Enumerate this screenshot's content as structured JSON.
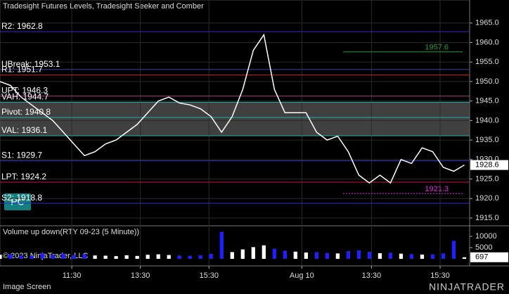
{
  "header": {
    "title": "Tradesight Futures Levels, Tradesight Seeker and Comber",
    "button": "PC",
    "footer": "Image Screen",
    "logo": "NINJATRADER"
  },
  "chart_data": [
    {
      "type": "line",
      "color": "#ffffff",
      "values": [
        1950,
        1949,
        1946,
        1944,
        1942,
        1940,
        1937,
        1934,
        1931,
        1932,
        1934,
        1935,
        1937,
        1939,
        1942,
        1945,
        1946,
        1944.5,
        1944,
        1943,
        1941,
        1937,
        1941,
        1948,
        1958,
        1962,
        1948,
        1942,
        1942,
        1942,
        1937,
        1935,
        1936,
        1932,
        1926,
        1924,
        1926,
        1924,
        1930,
        1929,
        1933,
        1932,
        1928,
        1927,
        1928.6
      ],
      "xlim": [
        0,
        44.5
      ],
      "xticks": [
        {
          "value": 6.8,
          "label": "11:30"
        },
        {
          "value": 13.3,
          "label": "13:30"
        },
        {
          "value": 19.8,
          "label": "15:30"
        },
        {
          "value": 28.6,
          "label": "Aug 10"
        },
        {
          "value": 35.2,
          "label": "13:30"
        },
        {
          "value": 41.7,
          "label": "15:30"
        }
      ],
      "ylim": [
        1913.2,
        1968.2
      ],
      "yticks": [
        {
          "value": 1965,
          "label": "1965.0"
        },
        {
          "value": 1960,
          "label": "1960.0"
        },
        {
          "value": 1955,
          "label": "1955.0"
        },
        {
          "value": 1950,
          "label": "1950.0"
        },
        {
          "value": 1945,
          "label": "1945.0"
        },
        {
          "value": 1940,
          "label": "1940.0"
        },
        {
          "value": 1935,
          "label": "1935.0"
        },
        {
          "value": 1930,
          "label": "1930.0"
        },
        {
          "value": 1925,
          "label": "1925.0"
        },
        {
          "value": 1920,
          "label": "1920.0"
        },
        {
          "value": 1915,
          "label": "1915.0"
        }
      ],
      "grid": true,
      "band": {
        "from": 1944.7,
        "to": 1936.1,
        "color": "#505050"
      },
      "levels": [
        {
          "label": "R2: 1962.8",
          "value": 1962.8,
          "color": "#2b2bd0"
        },
        {
          "label": "UBreak: 1953.1",
          "value": 1953.1,
          "color": "#4040a0"
        },
        {
          "label": "R1: 1951.7",
          "value": 1951.7,
          "color": "#d01010"
        },
        {
          "label": "UPT: 1946.3",
          "value": 1946.3,
          "color": "#a03080"
        },
        {
          "label": "VAH: 1944.7",
          "value": 1944.7,
          "color": "#20b0b0"
        },
        {
          "label": "Pivot: 1940.8",
          "value": 1940.8,
          "color": "#20b0b0"
        },
        {
          "label": "VAL: 1936.1",
          "value": 1936.1,
          "color": "#20b0b0"
        },
        {
          "label": "S1: 1929.7",
          "value": 1929.7,
          "color": "#2b2bd0"
        },
        {
          "label": "LPT: 1924.2",
          "value": 1924.2,
          "color": "#d01050"
        },
        {
          "label": "S2: 1918.8",
          "value": 1918.8,
          "color": "#2b2bd0"
        }
      ],
      "marks": [
        {
          "label": "1957.6",
          "value": 1957.6,
          "color": "#20a020"
        },
        {
          "label": "1921.3",
          "value": 1921.3,
          "color": "#e020e0"
        }
      ]
    },
    {
      "type": "bar",
      "title": "Volume up down(RTY 09-23 (5 Minute))",
      "copyright": "© 2023 NinjaTrader, LLC",
      "color": "#ffffff",
      "down_color": "#2020ff",
      "values": [
        1800,
        2200,
        1500,
        1300,
        2600,
        1900,
        2400,
        1700,
        2100,
        1500,
        1400,
        1200,
        1600,
        1300,
        1800,
        2000,
        1700,
        1500,
        1400,
        1600,
        2200,
        12000,
        3000,
        4200,
        5200,
        6000,
        4500,
        3600,
        3200,
        2800,
        3000,
        2600,
        2400,
        3400,
        3800,
        3100,
        2500,
        2700,
        2300,
        2100,
        1900,
        2000,
        2400,
        8000,
        697
      ],
      "xlim": [
        0,
        44.5
      ],
      "ylim": [
        0,
        14400
      ],
      "yticks": [
        10000,
        5000
      ]
    }
  ]
}
